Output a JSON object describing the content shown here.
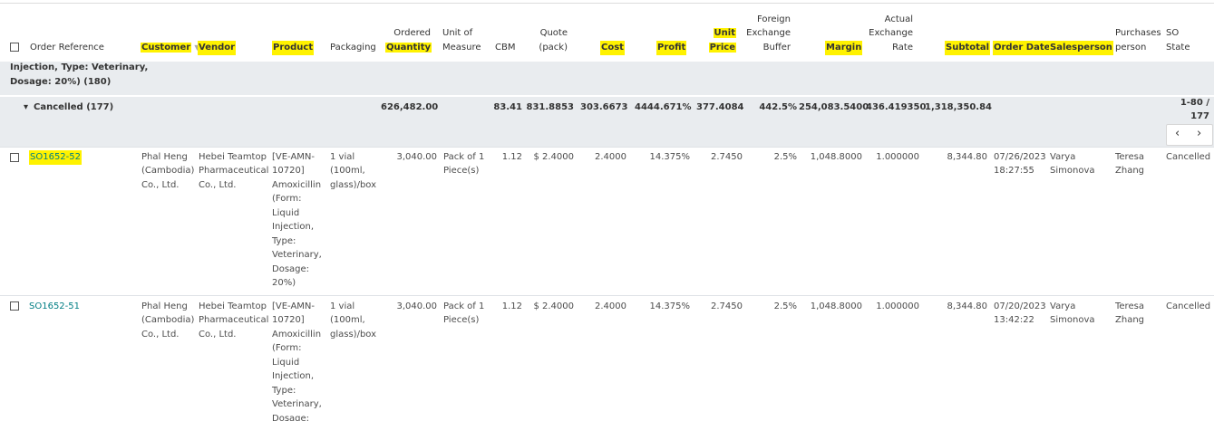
{
  "headers": {
    "order_reference": "Order Reference",
    "customer": "Customer",
    "vendor": "Vendor",
    "product": "Product",
    "packaging": "Packaging",
    "ordered_quantity": [
      "Ordered",
      "Quantity"
    ],
    "unit_of_measure": [
      "Unit of",
      "Measure"
    ],
    "cbm": "CBM",
    "quote_pack": [
      "Quote",
      "(pack)"
    ],
    "cost": "Cost",
    "profit": "Profit",
    "unit_price": [
      "Unit",
      "Price"
    ],
    "fx_buffer": [
      "Foreign",
      "Exchange",
      "Buffer"
    ],
    "margin": "Margin",
    "actual_fx_rate": [
      "Actual",
      "Exchange",
      "Rate"
    ],
    "subtotal": "Subtotal",
    "order_date": "Order Date",
    "salesperson": "Salesperson",
    "purchases_person": [
      "Purchases",
      "person"
    ],
    "so_state": [
      "SO",
      "State"
    ]
  },
  "parent_group": {
    "label_lines": [
      "Injection, Type: Veterinary,",
      "Dosage: 20%) (180)"
    ]
  },
  "group": {
    "label": "Cancelled (177)",
    "ordered_quantity": "626,482.00",
    "cbm": "83.41",
    "quote_pack": "831.8853",
    "cost": "303.6673",
    "profit": "4444.671%",
    "unit_price": "377.4084",
    "fx_buffer": "442.5%",
    "margin": "254,083.5400",
    "actual_fx_rate": "436.419350",
    "subtotal": "1,318,350.84",
    "pager_lines": [
      "1-80 /",
      "177"
    ]
  },
  "rows": [
    {
      "order_reference": "SO1652-52",
      "customer": [
        "Phal Heng",
        "(Cambodia)",
        "Co., Ltd."
      ],
      "vendor": [
        "Hebei Teamtop",
        "Pharmaceutical",
        "Co., Ltd."
      ],
      "product": [
        "[VE-AMN-",
        "10720]",
        "Amoxicillin",
        "(Form:",
        "Liquid",
        "Injection,",
        "Type:",
        "Veterinary,",
        "Dosage:",
        "20%)"
      ],
      "packaging": [
        "1 vial",
        "(100ml,",
        "glass)/box"
      ],
      "ordered_quantity": "3,040.00",
      "unit_of_measure": [
        "Pack of 1",
        "Piece(s)"
      ],
      "cbm": "1.12",
      "quote_pack": "$ 2.4000",
      "cost": "2.4000",
      "profit": "14.375%",
      "unit_price": "2.7450",
      "fx_buffer": "2.5%",
      "margin": "1,048.8000",
      "actual_fx_rate": "1.000000",
      "subtotal": "8,344.80",
      "order_date": [
        "07/26/2023",
        "18:27:55"
      ],
      "salesperson": [
        "Varya",
        "Simonova"
      ],
      "purchases_person": [
        "Teresa",
        "Zhang"
      ],
      "so_state": "Cancelled"
    },
    {
      "order_reference": "SO1652-51",
      "customer": [
        "Phal Heng",
        "(Cambodia)",
        "Co., Ltd."
      ],
      "vendor": [
        "Hebei Teamtop",
        "Pharmaceutical",
        "Co., Ltd."
      ],
      "product": [
        "[VE-AMN-",
        "10720]",
        "Amoxicillin",
        "(Form:",
        "Liquid",
        "Injection,",
        "Type:",
        "Veterinary,",
        "Dosage:"
      ],
      "packaging": [
        "1 vial",
        "(100ml,",
        "glass)/box"
      ],
      "ordered_quantity": "3,040.00",
      "unit_of_measure": [
        "Pack of 1",
        "Piece(s)"
      ],
      "cbm": "1.12",
      "quote_pack": "$ 2.4000",
      "cost": "2.4000",
      "profit": "14.375%",
      "unit_price": "2.7450",
      "fx_buffer": "2.5%",
      "margin": "1,048.8000",
      "actual_fx_rate": "1.000000",
      "subtotal": "8,344.80",
      "order_date": [
        "07/20/2023",
        "13:42:22"
      ],
      "salesperson": [
        "Varya",
        "Simonova"
      ],
      "purchases_person": [
        "Teresa",
        "Zhang"
      ],
      "so_state": "Cancelled"
    }
  ]
}
